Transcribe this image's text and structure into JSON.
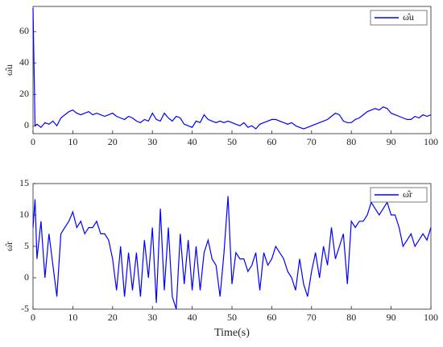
{
  "chart_data": [
    {
      "type": "line",
      "ylabel": "ω̂u",
      "xlim": [
        0,
        100
      ],
      "ylim": [
        -5,
        76
      ],
      "xticks": [
        0,
        10,
        20,
        30,
        40,
        50,
        60,
        70,
        80,
        90,
        100
      ],
      "yticks": [
        0,
        20,
        40,
        60
      ],
      "legend": "upper right",
      "x": [
        0,
        0.5,
        1,
        2,
        3,
        4,
        5,
        6,
        7,
        8,
        9,
        10,
        11,
        12,
        13,
        14,
        15,
        16,
        17,
        18,
        19,
        20,
        21,
        22,
        23,
        24,
        25,
        26,
        27,
        28,
        29,
        30,
        31,
        32,
        33,
        34,
        35,
        36,
        37,
        38,
        39,
        40,
        41,
        42,
        43,
        44,
        45,
        46,
        47,
        48,
        49,
        50,
        51,
        52,
        53,
        54,
        55,
        56,
        57,
        58,
        59,
        60,
        61,
        62,
        63,
        64,
        65,
        66,
        67,
        68,
        69,
        70,
        71,
        72,
        73,
        74,
        75,
        76,
        77,
        78,
        79,
        80,
        81,
        82,
        83,
        84,
        85,
        86,
        87,
        88,
        89,
        90,
        91,
        92,
        93,
        94,
        95,
        96,
        97,
        98,
        99,
        100
      ],
      "series": [
        {
          "name": "ω̂u",
          "color": "#0000ff",
          "values": [
            75,
            0,
            1,
            -1,
            2,
            1,
            3,
            0,
            5,
            7,
            9,
            10,
            8,
            7,
            8,
            9,
            7,
            8,
            7,
            6,
            7,
            8,
            6,
            5,
            4,
            6,
            5,
            3,
            2,
            4,
            3,
            8,
            4,
            3,
            8,
            5,
            3,
            6,
            5,
            1,
            0,
            -1,
            3,
            2,
            7,
            4,
            3,
            2,
            3,
            2,
            3,
            2,
            1,
            0,
            2,
            -1,
            0,
            -2,
            1,
            2,
            3,
            4,
            4,
            3,
            2,
            1,
            2,
            0,
            -1,
            -2,
            -1,
            0,
            1,
            2,
            3,
            4,
            6,
            8,
            7,
            3,
            2,
            2,
            4,
            5,
            7,
            9,
            10,
            11,
            10,
            12,
            11,
            8,
            7,
            6,
            5,
            4,
            4,
            6,
            5,
            7,
            6,
            7
          ]
        }
      ]
    },
    {
      "type": "line",
      "ylabel": "ω̂r",
      "xlabel": "Time(s)",
      "xlim": [
        0,
        100
      ],
      "ylim": [
        -5,
        15
      ],
      "xticks": [
        0,
        10,
        20,
        30,
        40,
        50,
        60,
        70,
        80,
        90,
        100
      ],
      "yticks": [
        -5,
        0,
        5,
        10,
        15
      ],
      "legend": "upper right",
      "x": [
        0,
        0.5,
        1,
        2,
        3,
        4,
        5,
        6,
        7,
        8,
        9,
        10,
        11,
        12,
        13,
        14,
        15,
        16,
        17,
        18,
        19,
        20,
        21,
        22,
        23,
        24,
        25,
        26,
        27,
        28,
        29,
        30,
        31,
        32,
        33,
        34,
        35,
        36,
        37,
        38,
        39,
        40,
        41,
        42,
        43,
        44,
        45,
        46,
        47,
        48,
        49,
        50,
        51,
        52,
        53,
        54,
        55,
        56,
        57,
        58,
        59,
        60,
        61,
        62,
        63,
        64,
        65,
        66,
        67,
        68,
        69,
        70,
        71,
        72,
        73,
        74,
        75,
        76,
        77,
        78,
        79,
        80,
        81,
        82,
        83,
        84,
        85,
        86,
        87,
        88,
        89,
        90,
        91,
        92,
        93,
        94,
        95,
        96,
        97,
        98,
        99,
        100
      ],
      "series": [
        {
          "name": "ω̂r",
          "color": "#0000ff",
          "values": [
            8,
            12.5,
            3,
            9,
            0,
            7,
            2,
            -3,
            7,
            8,
            9,
            10.5,
            8,
            9,
            7,
            8,
            8,
            9,
            7,
            7,
            6,
            3,
            -2,
            5,
            -3,
            4,
            -2,
            4,
            -3,
            6,
            0,
            8,
            -4,
            11,
            -2,
            8,
            -3,
            -5,
            7,
            -1,
            6,
            -2,
            5,
            -2,
            4,
            6,
            3,
            2,
            -3,
            4,
            13,
            -1,
            4,
            3,
            3,
            1,
            2,
            4,
            -2,
            4,
            2,
            3,
            5,
            4,
            3,
            1,
            0,
            -2,
            3,
            -1,
            -3,
            1,
            4,
            0,
            5,
            2,
            8,
            3,
            5,
            7,
            -1,
            9,
            8,
            9,
            9,
            10,
            12,
            11,
            10,
            11,
            12,
            10,
            10,
            8,
            5,
            6,
            7,
            5,
            6,
            7,
            6,
            8
          ]
        }
      ]
    }
  ]
}
